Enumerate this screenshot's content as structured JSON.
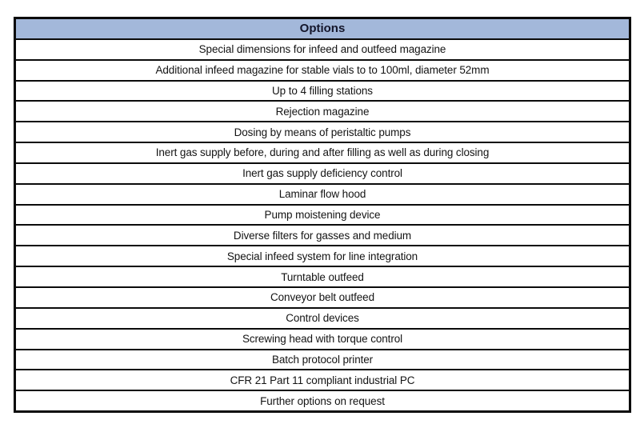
{
  "page": {
    "background_color": "#ffffff"
  },
  "table": {
    "title": "Options",
    "header_bg": "#a3b8da",
    "header_text_color": "#14162b",
    "border_color": "#0b0b0b",
    "row_bg": "#ffffff",
    "rows": [
      "Special dimensions for infeed and outfeed magazine",
      "Additional infeed magazine for stable vials to to 100ml, diameter 52mm",
      "Up to 4 filling stations",
      "Rejection magazine",
      "Dosing by means of peristaltic pumps",
      "Inert gas supply before, during and after filling as well as during closing",
      "Inert gas supply deficiency control",
      "Laminar flow hood",
      "Pump moistening device",
      "Diverse filters for gasses and medium",
      "Special infeed system for line integration",
      "Turntable outfeed",
      "Conveyor belt outfeed",
      "Control devices",
      "Screwing head with torque control",
      "Batch protocol printer",
      "CFR 21 Part 11 compliant industrial PC",
      "Further options on request"
    ]
  }
}
